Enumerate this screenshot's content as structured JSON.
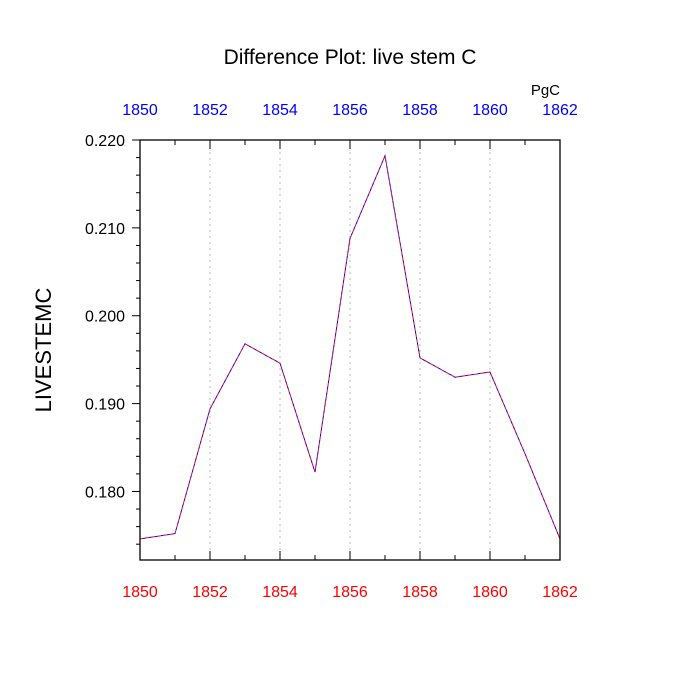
{
  "chart_data": {
    "type": "line",
    "title": "Difference Plot: live stem C",
    "ylabel": "LIVESTEMC",
    "units": "PgC",
    "xlim": [
      1850,
      1862
    ],
    "ylim": [
      0.1722,
      0.22
    ],
    "x_ticks": [
      "1850",
      "1852",
      "1854",
      "1856",
      "1858",
      "1860",
      "1862"
    ],
    "x_tick_values": [
      1850,
      1852,
      1854,
      1856,
      1858,
      1860,
      1862
    ],
    "y_ticks": [
      "0.220",
      "0.210",
      "0.200",
      "0.190",
      "0.180"
    ],
    "y_tick_values": [
      0.22,
      0.21,
      0.2,
      0.19,
      0.18
    ],
    "grid": "vertical dotted at x ticks",
    "colors": {
      "top_axis": "#0000ff",
      "bottom_axis": "#ff0000",
      "series_a": "#0000ff",
      "series_b": "#ff0000"
    },
    "x": [
      1850,
      1851,
      1852,
      1853,
      1854,
      1855,
      1856,
      1857,
      1858,
      1859,
      1860,
      1861,
      1862
    ],
    "series": [
      {
        "values": [
          0.1746,
          0.1752,
          0.1894,
          0.1968,
          0.1946,
          0.1822,
          0.2088,
          0.2182,
          0.1952,
          0.193,
          0.1936,
          0.1843,
          0.1746
        ]
      },
      {
        "values": [
          0.1746,
          0.1752,
          0.1894,
          0.1968,
          0.1946,
          0.1822,
          0.2088,
          0.2182,
          0.1952,
          0.193,
          0.1936,
          0.1843,
          0.1746
        ]
      }
    ]
  }
}
